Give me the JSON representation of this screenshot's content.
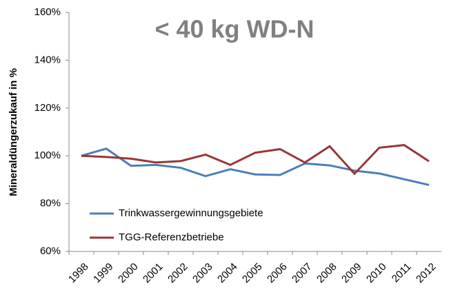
{
  "chart_data": {
    "type": "line",
    "title": "< 40 kg WD-N",
    "y_label": "Mineraldüngerzukauf in %",
    "categories": [
      "1998",
      "1999",
      "2000",
      "2001",
      "2002",
      "2003",
      "2004",
      "2005",
      "2006",
      "2007",
      "2008",
      "2009",
      "2010",
      "2011",
      "2012"
    ],
    "series": [
      {
        "name": "Trinkwassergewinnungsgebiete",
        "color": "#4a7ebb",
        "values": [
          100,
          103,
          95.8,
          96.2,
          95,
          91.5,
          94.4,
          92.2,
          92,
          96.8,
          96,
          93.8,
          92.6,
          90.2,
          87.8
        ]
      },
      {
        "name": "TGG-Referenzbetriebe",
        "color": "#9b3535",
        "values": [
          100,
          99.5,
          98.8,
          97.2,
          97.8,
          100.5,
          96.2,
          101.3,
          102.8,
          97.2,
          104,
          92.5,
          103.4,
          104.5,
          97.7
        ]
      }
    ],
    "ylim": [
      60,
      160
    ],
    "yticks": [
      {
        "value": 60,
        "label": "60%"
      },
      {
        "value": 80,
        "label": "80%"
      },
      {
        "value": 100,
        "label": "100%"
      },
      {
        "value": 120,
        "label": "120%"
      },
      {
        "value": 140,
        "label": "140%"
      },
      {
        "value": 160,
        "label": "160%"
      }
    ],
    "legend": "lower left",
    "grid": true
  }
}
